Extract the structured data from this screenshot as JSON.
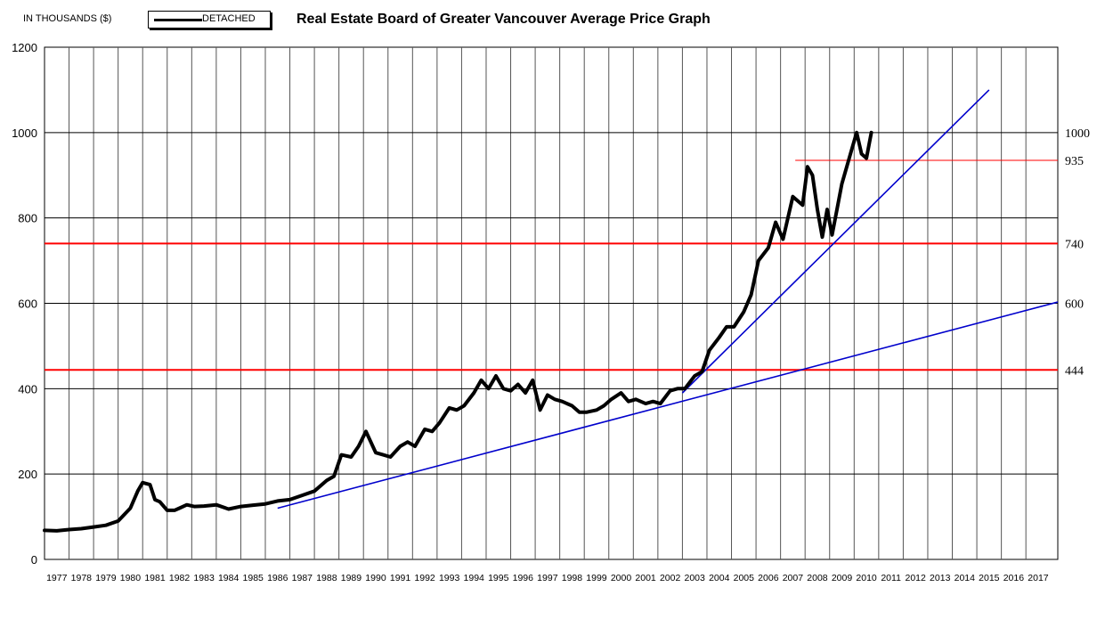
{
  "header": {
    "units_label": "IN THOUSANDS ($)",
    "legend_label": "DETACHED",
    "title": "Real Estate Board of Greater Vancouver Average Price Graph"
  },
  "chart_data": {
    "type": "line",
    "title": "Real Estate Board of Greater Vancouver Average Price Graph",
    "ylabel": "IN THOUSANDS ($)",
    "xlabel": "",
    "ylim": [
      0,
      1200
    ],
    "xlim": [
      1976.5,
      2017.8
    ],
    "y_ticks": [
      0,
      200,
      400,
      600,
      800,
      1000,
      1200
    ],
    "x_ticks": [
      1977,
      1978,
      1979,
      1980,
      1981,
      1982,
      1983,
      1984,
      1985,
      1986,
      1987,
      1988,
      1989,
      1990,
      1991,
      1992,
      1993,
      1994,
      1995,
      1996,
      1997,
      1998,
      1999,
      2000,
      2001,
      2002,
      2003,
      2004,
      2005,
      2006,
      2007,
      2008,
      2009,
      2010,
      2011,
      2012,
      2013,
      2014,
      2015,
      2016,
      2017
    ],
    "grid": true,
    "legend_position": "top-left",
    "colors": {
      "price": "#000000",
      "level": "#ff0000",
      "trend": "#0000cc"
    },
    "series": [
      {
        "name": "DETACHED",
        "x": [
          1976.5,
          1977.0,
          1977.5,
          1978.0,
          1978.5,
          1979.0,
          1979.5,
          1980.0,
          1980.3,
          1980.5,
          1980.8,
          1981.0,
          1981.2,
          1981.5,
          1981.8,
          1982.0,
          1982.3,
          1982.6,
          1983.0,
          1983.5,
          1984.0,
          1984.5,
          1985.0,
          1985.5,
          1986.0,
          1986.5,
          1987.0,
          1987.5,
          1988.0,
          1988.3,
          1988.6,
          1989.0,
          1989.3,
          1989.6,
          1990.0,
          1990.3,
          1990.6,
          1991.0,
          1991.3,
          1991.6,
          1992.0,
          1992.3,
          1992.6,
          1993.0,
          1993.3,
          1993.6,
          1994.0,
          1994.3,
          1994.6,
          1994.9,
          1995.2,
          1995.5,
          1995.8,
          1996.1,
          1996.4,
          1996.7,
          1997.0,
          1997.3,
          1997.6,
          1998.0,
          1998.3,
          1998.6,
          1999.0,
          1999.3,
          1999.6,
          2000.0,
          2000.3,
          2000.6,
          2001.0,
          2001.3,
          2001.6,
          2002.0,
          2002.3,
          2002.6,
          2003.0,
          2003.3,
          2003.6,
          2004.0,
          2004.3,
          2004.6,
          2005.0,
          2005.3,
          2005.6,
          2006.0,
          2006.3,
          2006.6,
          2007.0,
          2007.2,
          2007.4,
          2007.6,
          2007.8,
          2008.0,
          2008.2,
          2008.4,
          2008.6,
          2008.8,
          2009.0,
          2009.2,
          2009.4,
          2009.6,
          2009.8,
          2010.0,
          2010.2
        ],
        "values": [
          68,
          67,
          70,
          72,
          76,
          80,
          90,
          120,
          160,
          180,
          175,
          140,
          135,
          115,
          115,
          120,
          128,
          124,
          125,
          128,
          118,
          124,
          127,
          130,
          137,
          140,
          150,
          160,
          185,
          195,
          245,
          240,
          265,
          300,
          250,
          245,
          240,
          265,
          275,
          265,
          305,
          300,
          320,
          355,
          350,
          360,
          390,
          420,
          400,
          430,
          400,
          395,
          410,
          390,
          420,
          350,
          385,
          375,
          370,
          360,
          345,
          345,
          350,
          360,
          375,
          390,
          370,
          375,
          365,
          370,
          365,
          395,
          400,
          400,
          430,
          440,
          490,
          520,
          545,
          545,
          580,
          620,
          700,
          730,
          790,
          750,
          850,
          840,
          830,
          920,
          900,
          820,
          755,
          820,
          760,
          820,
          880,
          920,
          960,
          1000,
          950,
          940,
          1000
        ]
      },
      {
        "name": "",
        "style": "horizontal-level",
        "y": 444,
        "x_range": [
          1976.5,
          2017.8
        ],
        "label": "444"
      },
      {
        "name": "",
        "style": "horizontal-level",
        "y": 740,
        "x_range": [
          1976.5,
          2017.8
        ],
        "label": "740"
      },
      {
        "name": "",
        "style": "horizontal-level",
        "y": 935,
        "x_range": [
          2007.1,
          2017.8
        ],
        "label": "935"
      },
      {
        "name": "",
        "style": "trend-line",
        "x": [
          1986.0,
          2017.8
        ],
        "values": [
          120,
          603
        ],
        "label": "600"
      },
      {
        "name": "",
        "style": "trend-line",
        "x": [
          2002.5,
          2015.0
        ],
        "values": [
          390,
          1100
        ]
      }
    ],
    "right_labels": [
      {
        "text": "1000",
        "y": 1000
      },
      {
        "text": "935",
        "y": 935
      },
      {
        "text": "740",
        "y": 740
      },
      {
        "text": "600",
        "y": 600
      },
      {
        "text": "444",
        "y": 444
      }
    ]
  }
}
